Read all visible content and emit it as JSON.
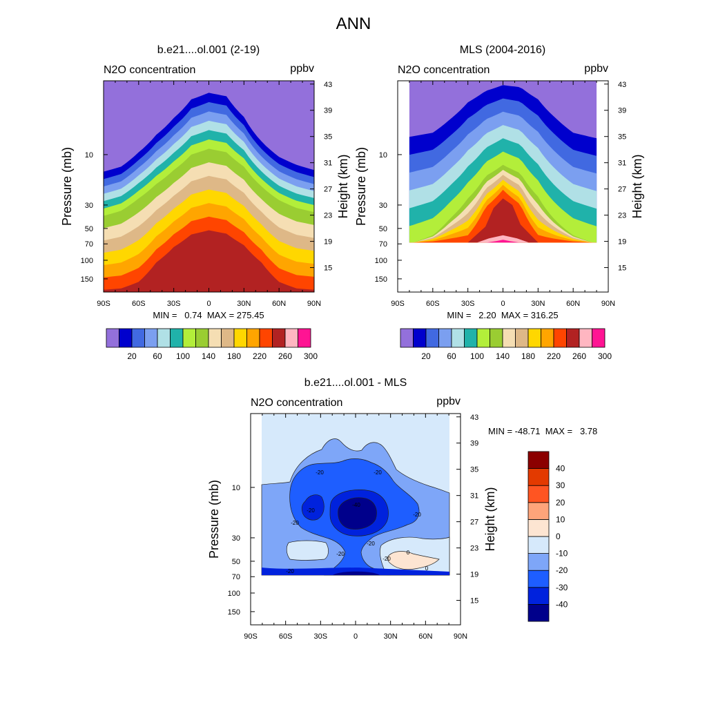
{
  "figure": {
    "title": "ANN"
  },
  "panels": [
    {
      "id": "model",
      "title": "b.e21....ol.001 (2-19)",
      "left_label": "N2O concentration",
      "right_label": "ppbv",
      "ylabel": "Pressure (mb)",
      "ylabel2": "Height (km)",
      "stats": "MIN =   0.74  MAX = 275.45"
    },
    {
      "id": "mls",
      "title": "MLS (2004-2016)",
      "left_label": "N2O concentration",
      "right_label": "ppbv",
      "ylabel": "Pressure (mb)",
      "ylabel2": "Height (km)",
      "stats": "MIN =   2.20  MAX = 316.25"
    },
    {
      "id": "diff",
      "title": "b.e21....ol.001 - MLS",
      "left_label": "N2O concentration",
      "right_label": "ppbv",
      "ylabel": "Pressure (mb)",
      "ylabel2": "Height (km)",
      "stats": "MIN = -48.71  MAX =   3.78"
    }
  ],
  "axes": {
    "x_ticks": [
      "90S",
      "60S",
      "30S",
      "0",
      "30N",
      "60N",
      "90N"
    ],
    "x_tick_values": [
      -90,
      -60,
      -30,
      0,
      30,
      60,
      90
    ],
    "p_ticks": [
      "10",
      "30",
      "50",
      "70",
      "100",
      "150"
    ],
    "p_tick_values": [
      10,
      30,
      50,
      70,
      100,
      150
    ],
    "h_ticks": [
      "43",
      "39",
      "35",
      "31",
      "27",
      "23",
      "19",
      "15"
    ],
    "h_tick_values": [
      43,
      39,
      35,
      31,
      27,
      23,
      19,
      15
    ],
    "p_range": [
      2,
      200
    ],
    "log_pressure": true
  },
  "colorbar_abs": {
    "colors": [
      "#9370db",
      "#0000cd",
      "#4169e1",
      "#7b9ff0",
      "#b0e0e6",
      "#20b2aa",
      "#b3ee3a",
      "#9acd32",
      "#f5deb3",
      "#deb887",
      "#ffd700",
      "#ffa500",
      "#ff4500",
      "#b22222",
      "#ffb6c1",
      "#ff1493"
    ],
    "tick_labels": [
      "20",
      "60",
      "100",
      "140",
      "180",
      "220",
      "260",
      "300"
    ]
  },
  "colorbar_diff": {
    "colors": [
      "#00008b",
      "#0022dd",
      "#1e5eff",
      "#7ea6f8",
      "#d6e9fb",
      "#fde5d2",
      "#fea47a",
      "#ff5522",
      "#e33a00",
      "#8b0000"
    ],
    "tick_labels": [
      "-40",
      "-30",
      "-20",
      "-10",
      "0",
      "10",
      "20",
      "30",
      "40"
    ]
  },
  "contour_labels": [
    "-20",
    "-20",
    "-20",
    "-20",
    "-40",
    "-20",
    "-20",
    "-20",
    "-20",
    "-20",
    "0",
    "0"
  ],
  "chart_data": [
    {
      "type": "heatmap",
      "title": "b.e21....ol.001 (2-19)",
      "ylabel": "Pressure (mb)",
      "y2label": "Height (km)",
      "units": "ppbv",
      "xlim": [
        -90,
        90
      ],
      "min": 0.74,
      "max": 275.45,
      "contour_levels": [
        20,
        40,
        60,
        80,
        100,
        120,
        140,
        160,
        180,
        200,
        220,
        240,
        260,
        280,
        300
      ],
      "boundary_pressure_profiles": {
        "latitudes": [
          -90,
          -75,
          -60,
          -45,
          -30,
          -15,
          0,
          15,
          30,
          45,
          60,
          75,
          90
        ],
        "level_20": [
          14.5,
          13,
          9.5,
          6.5,
          4.5,
          3.0,
          2.6,
          2.8,
          4.4,
          7.5,
          10.5,
          12.5,
          14
        ],
        "level_140": [
          38,
          34,
          26,
          19,
          14,
          10,
          8.8,
          9.5,
          13,
          20,
          27,
          32,
          35
        ],
        "level_260": [
          190,
          185,
          160,
          105,
          75,
          57,
          52,
          56,
          72,
          105,
          160,
          185,
          190
        ]
      }
    },
    {
      "type": "heatmap",
      "title": "MLS (2004-2016)",
      "ylabel": "Pressure (mb)",
      "y2label": "Height (km)",
      "units": "ppbv",
      "xlim": [
        -90,
        90
      ],
      "data_extent": {
        "lat": [
          -80,
          80
        ],
        "p": [
          2,
          68
        ]
      },
      "min": 2.2,
      "max": 316.25,
      "contour_levels": [
        20,
        40,
        60,
        80,
        100,
        120,
        140,
        160,
        180,
        200,
        220,
        240,
        260,
        280,
        300
      ],
      "boundary_pressure_profiles": {
        "latitudes": [
          -80,
          -60,
          -45,
          -30,
          -15,
          0,
          15,
          30,
          45,
          60,
          80
        ],
        "level_20": [
          6.8,
          6.2,
          4.6,
          3.2,
          2.5,
          2.2,
          2.3,
          3.0,
          4.5,
          6.2,
          7
        ],
        "level_140": [
          70,
          58,
          40,
          26,
          16,
          12.5,
          15,
          25,
          42,
          58,
          70
        ],
        "level_260": [
          68,
          68,
          68,
          68,
          36,
          24,
          34,
          68,
          68,
          68,
          68
        ]
      }
    },
    {
      "type": "heatmap",
      "title": "b.e21....ol.001 - MLS",
      "ylabel": "Pressure (mb)",
      "y2label": "Height (km)",
      "units": "ppbv",
      "xlim": [
        -90,
        90
      ],
      "data_extent": {
        "lat": [
          -80,
          80
        ],
        "p": [
          2,
          68
        ]
      },
      "min": -48.71,
      "max": 3.78,
      "contour_levels": [
        -40,
        -30,
        -20,
        -10,
        0,
        10,
        20,
        30,
        40
      ]
    }
  ]
}
